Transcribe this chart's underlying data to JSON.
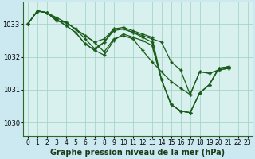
{
  "background_color": "#cce8f0",
  "plot_bg_color": "#d8f0ee",
  "grid_color": "#9ecfbf",
  "line_color": "#1a5c1a",
  "xlabel": "Graphe pression niveau de la mer (hPa)",
  "xlabel_fontsize": 7,
  "tick_fontsize": 5.5,
  "xlim": [
    -0.5,
    23.5
  ],
  "ylim": [
    1029.6,
    1033.65
  ],
  "yticks": [
    1030,
    1031,
    1032,
    1033
  ],
  "xticks": [
    0,
    1,
    2,
    3,
    4,
    5,
    6,
    7,
    8,
    9,
    10,
    11,
    12,
    13,
    14,
    15,
    16,
    17,
    18,
    19,
    20,
    21,
    22,
    23
  ],
  "series": [
    [
      1033.0,
      1033.4,
      1033.35,
      1033.1,
      1033.05,
      1032.85,
      1032.65,
      1032.45,
      1032.55,
      1032.85,
      1032.85,
      1032.75,
      1032.65,
      1032.55,
      1032.45,
      1031.85,
      1031.6,
      1030.85,
      1031.55,
      1031.5,
      1031.6,
      1031.65,
      null,
      null
    ],
    [
      1033.0,
      1033.4,
      1033.35,
      1033.1,
      1033.05,
      1032.85,
      1032.65,
      1032.45,
      1032.15,
      1032.55,
      1032.65,
      1032.55,
      1032.2,
      1031.85,
      1031.55,
      1031.25,
      1031.05,
      1030.85,
      1031.55,
      1031.5,
      1031.6,
      1031.65,
      null,
      null
    ],
    [
      1033.0,
      1033.4,
      1033.35,
      1033.15,
      1032.95,
      1032.75,
      1032.4,
      1032.2,
      1032.05,
      1032.5,
      1032.7,
      1032.6,
      1032.5,
      1032.35,
      1031.3,
      1030.55,
      1030.35,
      1030.3,
      1030.9,
      1031.15,
      1031.65,
      1031.7,
      null,
      null
    ],
    [
      1033.0,
      1033.4,
      1033.35,
      1033.15,
      1032.95,
      1032.75,
      1032.4,
      1032.2,
      1032.45,
      1032.85,
      1032.9,
      1032.8,
      1032.7,
      1032.6,
      1031.3,
      1030.55,
      1030.35,
      1030.3,
      1030.9,
      1031.15,
      1031.65,
      1031.7,
      null,
      null
    ],
    [
      1033.0,
      1033.4,
      1033.35,
      1033.2,
      1033.05,
      1032.85,
      1032.55,
      1032.25,
      1032.45,
      1032.8,
      1032.85,
      1032.75,
      1032.6,
      1032.45,
      1031.3,
      1030.55,
      1030.35,
      1030.3,
      1030.9,
      1031.15,
      1031.65,
      1031.7,
      null,
      null
    ]
  ],
  "marker_size": 3.0,
  "line_width": 0.9
}
